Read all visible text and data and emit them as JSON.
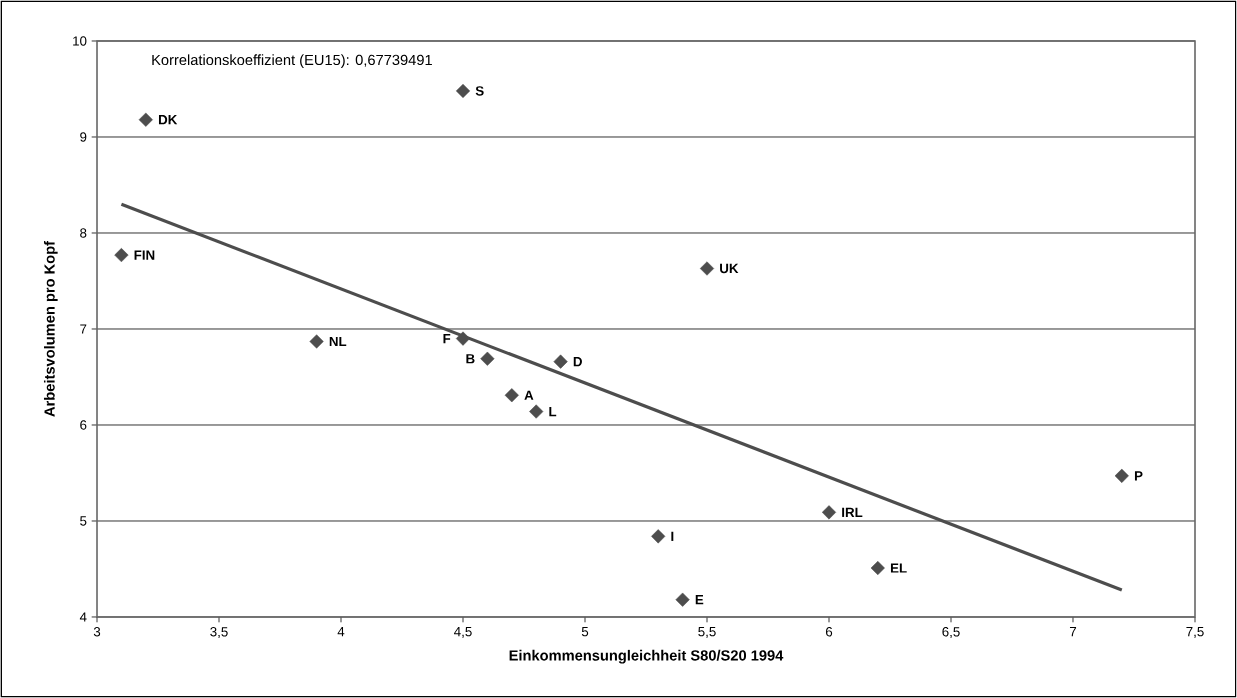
{
  "chart_data": {
    "type": "scatter",
    "xlabel": "Einkommensungleichheit S80/S20 1994",
    "ylabel": "Arbeitsvolumen pro Kopf",
    "xlim": [
      3,
      7.5
    ],
    "ylim": [
      4,
      10
    ],
    "xticks": [
      3,
      {
        "value": 3.5,
        "label": "3,5"
      },
      4,
      {
        "value": 4.5,
        "label": "4,5"
      },
      5,
      {
        "value": 5.5,
        "label": "5,5"
      },
      6,
      {
        "value": 6.5,
        "label": "6,5"
      },
      7,
      {
        "value": 7.5,
        "label": "7,5"
      }
    ],
    "yticks": [
      4,
      5,
      6,
      7,
      8,
      9,
      10
    ],
    "grid": "y",
    "series": [
      {
        "color": "#4d4d4d",
        "marker": "diamond",
        "x": [
          3.2,
          4.5,
          3.1,
          3.9,
          4.5,
          4.6,
          4.9,
          4.7,
          4.8,
          5.5,
          7.2,
          6.0,
          5.3,
          6.2,
          5.4
        ],
        "values": [
          9.18,
          9.48,
          7.77,
          6.87,
          6.9,
          6.69,
          6.66,
          6.31,
          6.14,
          7.63,
          5.47,
          5.09,
          4.84,
          4.51,
          4.18
        ]
      },
      {
        "type": "line",
        "marker": "none",
        "color": "#4d4d4d",
        "x": [
          3.1,
          7.2
        ],
        "values": [
          8.3,
          4.28
        ]
      }
    ],
    "annotations": [
      "Korrelationskoeffizient (EU15): 0,67739491",
      {
        "text": "DK",
        "x": 3.2,
        "y": 9.18
      },
      {
        "text": "S",
        "x": 4.5,
        "y": 9.48
      },
      {
        "text": "FIN",
        "x": 3.1,
        "y": 7.77
      },
      {
        "text": "NL",
        "x": 3.9,
        "y": 6.87
      },
      {
        "text": "F",
        "x": 4.5,
        "y": 6.9
      },
      {
        "text": "B",
        "x": 4.6,
        "y": 6.69
      },
      {
        "text": "D",
        "x": 4.9,
        "y": 6.66
      },
      {
        "text": "A",
        "x": 4.7,
        "y": 6.31
      },
      {
        "text": "L",
        "x": 4.8,
        "y": 6.14
      },
      {
        "text": "UK",
        "x": 5.5,
        "y": 7.63
      },
      {
        "text": "P",
        "x": 7.2,
        "y": 5.47
      },
      {
        "text": "IRL",
        "x": 6.0,
        "y": 5.09
      },
      {
        "text": "I",
        "x": 5.3,
        "y": 4.84
      },
      {
        "text": "EL",
        "x": 6.2,
        "y": 4.51
      },
      {
        "text": "E",
        "x": 5.4,
        "y": 4.18
      }
    ]
  }
}
